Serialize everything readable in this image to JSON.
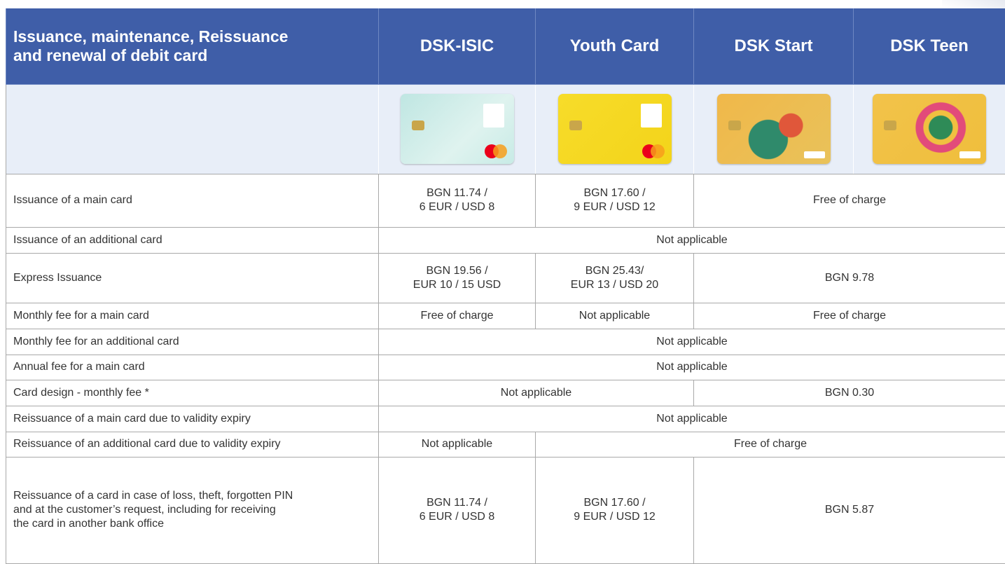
{
  "header": {
    "title": "Issuance, maintenance, Reissuance\nand renewal of debit card",
    "columns": [
      "DSK-ISIC",
      "Youth Card",
      "DSK Start",
      "DSK Teen"
    ]
  },
  "rows": [
    {
      "label": "Issuance of a main card",
      "cells": [
        "BGN 11.74 /\n6 EUR / USD 8",
        "BGN 17.60 /\n9 EUR / USD 12",
        "Free of charge"
      ]
    },
    {
      "label": "Issuance of an additional card",
      "cells": [
        "Not applicable"
      ]
    },
    {
      "label": "Express Issuance",
      "cells": [
        "BGN 19.56 /\nEUR 10 / 15 USD",
        "BGN 25.43/\nEUR 13 / USD 20",
        "BGN 9.78"
      ]
    },
    {
      "label": "Monthly fee for a main card",
      "cells": [
        "Free of charge",
        "Not applicable",
        "Free of charge"
      ]
    },
    {
      "label": "Monthly fee for an additional card",
      "cells": [
        "Not applicable"
      ]
    },
    {
      "label": "Annual fee for a main card",
      "cells": [
        "Not applicable"
      ]
    },
    {
      "label": "Card design - monthly fee *",
      "cells": [
        "Not applicable",
        "BGN 0.30"
      ]
    },
    {
      "label": "Reissuance of a main card due to validity expiry",
      "cells": [
        "Not applicable"
      ]
    },
    {
      "label": "Reissuance of an additional card due to validity expiry",
      "cells": [
        "Not applicable",
        "Free of charge"
      ]
    },
    {
      "label": "Reissuance of a card in case of loss, theft, forgotten PIN\nand at the customer’s request, including for receiving\nthe card in another bank office",
      "cells": [
        "BGN 11.74 /\n6 EUR / USD 8",
        "BGN 17.60 /\n9 EUR / USD 12",
        "BGN 5.87"
      ]
    }
  ]
}
